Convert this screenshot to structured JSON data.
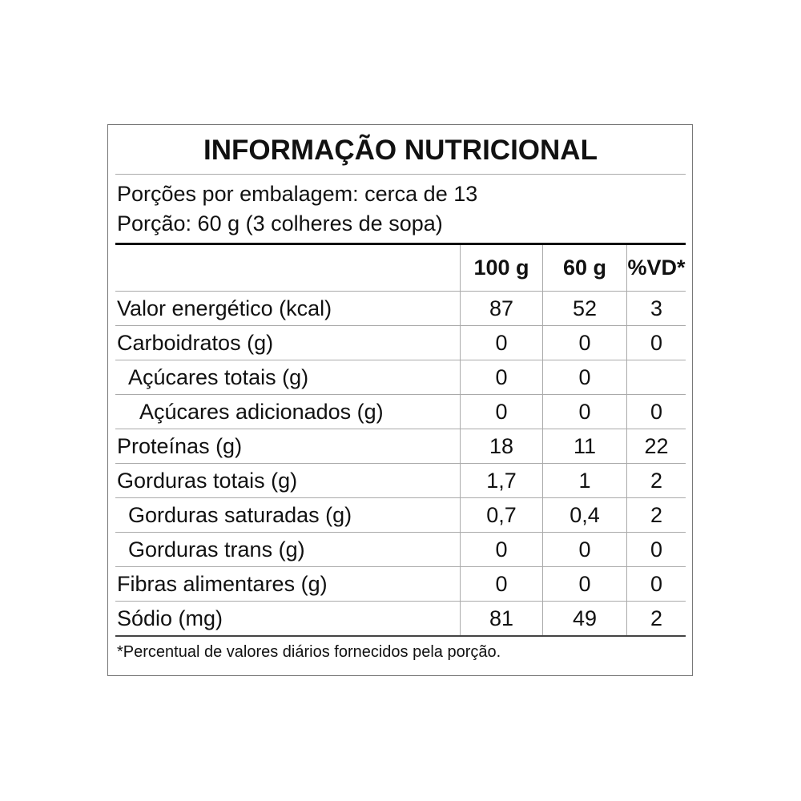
{
  "title": "INFORMAÇÃO NUTRICIONAL",
  "servings_per_package": "Porções por embalagem: cerca de 13",
  "serving_size": "Porção: 60 g (3 colheres de sopa)",
  "columns": [
    "",
    "100 g",
    "60 g",
    "%VD*"
  ],
  "rows": [
    {
      "label": "Valor energético (kcal)",
      "indent": 0,
      "per100": "87",
      "perServing": "52",
      "vd": "3"
    },
    {
      "label": "Carboidratos (g)",
      "indent": 0,
      "per100": "0",
      "perServing": "0",
      "vd": "0"
    },
    {
      "label": "Açúcares totais (g)",
      "indent": 1,
      "per100": "0",
      "perServing": "0",
      "vd": ""
    },
    {
      "label": "Açúcares adicionados (g)",
      "indent": 2,
      "per100": "0",
      "perServing": "0",
      "vd": "0"
    },
    {
      "label": "Proteínas (g)",
      "indent": 0,
      "per100": "18",
      "perServing": "11",
      "vd": "22"
    },
    {
      "label": "Gorduras totais (g)",
      "indent": 0,
      "per100": "1,7",
      "perServing": "1",
      "vd": "2"
    },
    {
      "label": "Gorduras saturadas (g)",
      "indent": 1,
      "per100": "0,7",
      "perServing": "0,4",
      "vd": "2"
    },
    {
      "label": "Gorduras trans (g)",
      "indent": 1,
      "per100": "0",
      "perServing": "0",
      "vd": "0"
    },
    {
      "label": "Fibras alimentares (g)",
      "indent": 0,
      "per100": "0",
      "perServing": "0",
      "vd": "0"
    },
    {
      "label": "Sódio (mg)",
      "indent": 0,
      "per100": "81",
      "perServing": "49",
      "vd": "2"
    }
  ],
  "footnote": "*Percentual de valores diários fornecidos pela porção."
}
